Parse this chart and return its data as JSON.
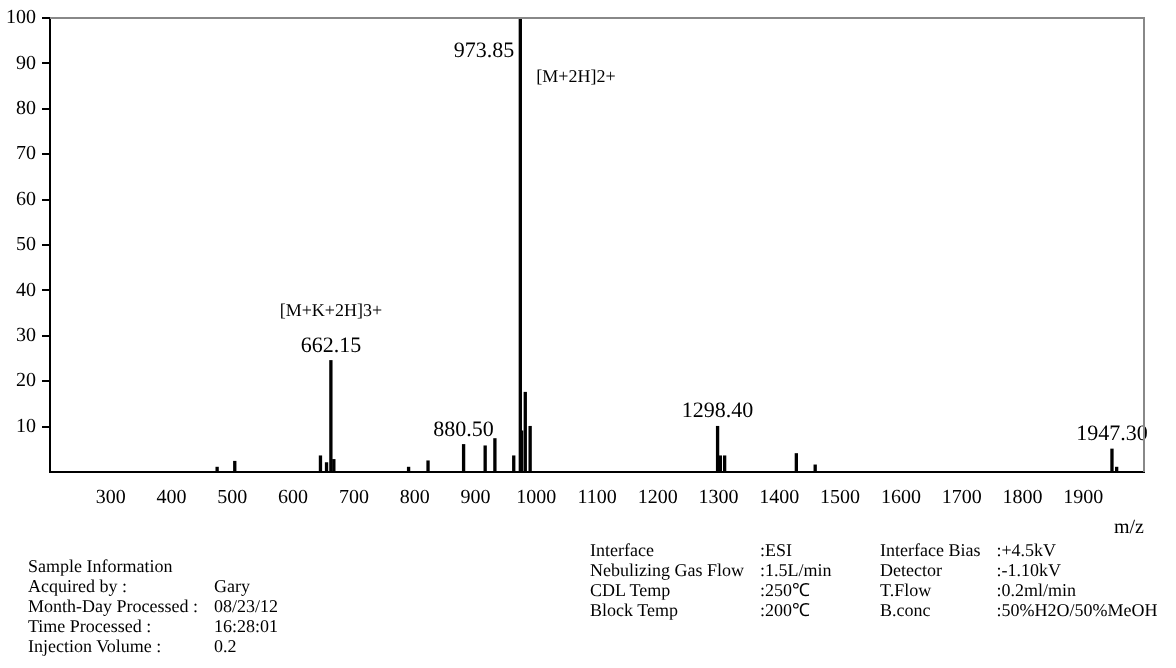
{
  "chart_data": {
    "type": "bar",
    "xlabel": "m/z",
    "x": [
      475,
      504,
      645,
      655,
      662.15,
      667,
      790,
      822,
      880.5,
      916,
      932,
      963,
      973.85,
      976,
      982,
      990,
      1298.4,
      1303,
      1310,
      1428,
      1459,
      1947.3,
      1955
    ],
    "values": [
      1,
      2.3,
      3.5,
      2,
      24.5,
      2.7,
      1,
      2.4,
      6,
      5.7,
      7.3,
      3.5,
      100,
      9,
      17.5,
      10,
      10,
      3.5,
      3.5,
      4,
      1.5,
      5,
      1
    ],
    "color": "#000000",
    "xlim": [
      200,
      2000
    ],
    "xticks": [
      300,
      400,
      500,
      600,
      700,
      800,
      900,
      1000,
      1100,
      1200,
      1300,
      1400,
      1500,
      1600,
      1700,
      1800,
      1900
    ],
    "ylim": [
      0,
      100
    ],
    "yticks": [
      10,
      20,
      30,
      40,
      50,
      60,
      70,
      80,
      90,
      100
    ],
    "grid": false,
    "legend": false,
    "annotations": [
      {
        "text": "973.85",
        "x": 973.85,
        "y": 100
      },
      {
        "text": "[M+2H]2+",
        "x": 973.85,
        "y": 100
      },
      {
        "text": "662.15",
        "x": 662.15,
        "y": 24.5
      },
      {
        "text": "[M+K+2H]3+",
        "x": 662.15,
        "y": 24.5
      },
      {
        "text": "880.50",
        "x": 880.5,
        "y": 6
      },
      {
        "text": "1298.40",
        "x": 1298.4,
        "y": 10
      },
      {
        "text": "1947.30",
        "x": 1947.3,
        "y": 5
      },
      "Sample Information",
      "Acquired by :",
      "Gary",
      "Month-Day Processed :",
      "08/23/12",
      "Time Processed :",
      "16:28:01",
      "Injection Volume :",
      "0.2",
      "Interface",
      ":ESI",
      "Nebulizing Gas Flow",
      ":1.5L/min",
      "CDL Temp",
      ":250℃",
      "Block Temp",
      ":200℃",
      "Interface Bias",
      ":+4.5kV",
      "Detector",
      ":-1.10kV",
      "T.Flow",
      ":0.2ml/min",
      "B.conc",
      ":50%H2O/50%MeOH"
    ]
  }
}
